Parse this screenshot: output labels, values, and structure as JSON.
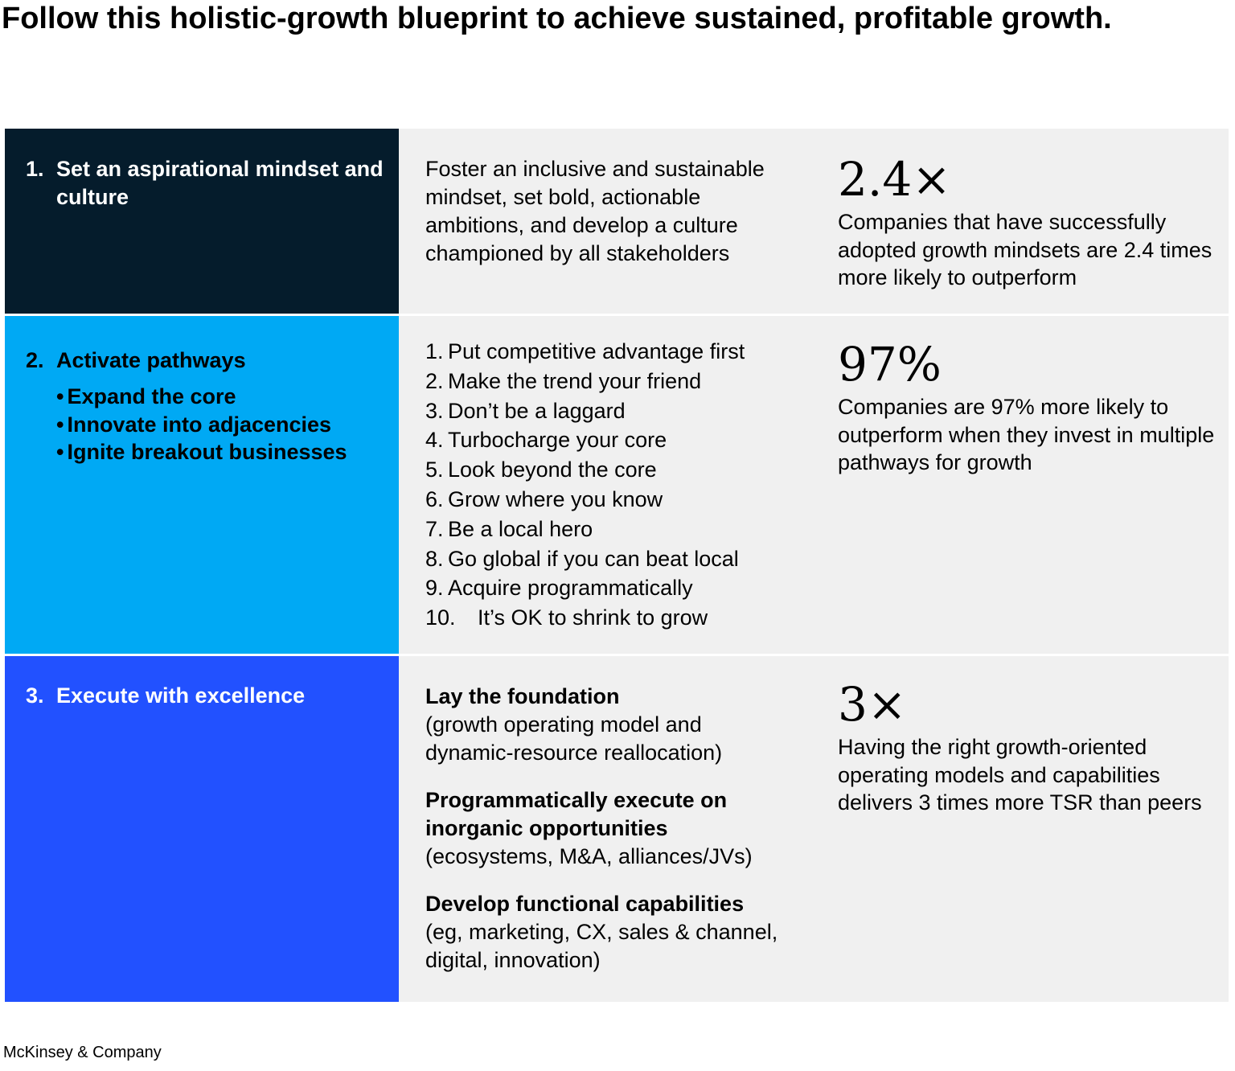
{
  "title": "Follow this holistic-growth blueprint to achieve sustained, profitable growth.",
  "colors": {
    "step1_bg": "#051c2c",
    "step2_bg": "#00a9f4",
    "step3_bg": "#2251ff",
    "panel_bg": "#f0f0f0"
  },
  "rows": [
    {
      "number": "1.",
      "heading": "Set an aspirational mindset and culture",
      "description": "Foster an inclusive and sustainable mindset, set bold, actionable ambitions, and develop a culture championed by all stakeholders",
      "stat_value": "2.4×",
      "stat_text": "Companies that have successfully adopted growth mindsets are 2.4 times more likely to outperform"
    },
    {
      "number": "2.",
      "heading": "Activate pathways",
      "bullets": [
        "Expand the core",
        "Innovate into adjacencies",
        "Ignite breakout businesses"
      ],
      "pathways": [
        {
          "n": "1.",
          "text": "Put competitive advantage first"
        },
        {
          "n": "2.",
          "text": "Make the trend your friend"
        },
        {
          "n": "3.",
          "text": "Don’t be a laggard"
        },
        {
          "n": "4.",
          "text": "Turbocharge your core"
        },
        {
          "n": "5.",
          "text": "Look beyond the core"
        },
        {
          "n": "6.",
          "text": "Grow where you know"
        },
        {
          "n": "7.",
          "text": "Be a local hero"
        },
        {
          "n": "8.",
          "text": "Go global if you can beat local"
        },
        {
          "n": "9.",
          "text": "Acquire programmatically"
        },
        {
          "n": "10.",
          "text": "It’s OK to shrink to grow"
        }
      ],
      "stat_value": "97%",
      "stat_text": "Companies are 97% more likely to outperform when they invest in multiple pathways for growth"
    },
    {
      "number": "3.",
      "heading": "Execute with excellence",
      "blocks": [
        {
          "head": "Lay the foundation",
          "body": "(growth operating model and dynamic-resource reallocation)"
        },
        {
          "head": "Programmatically execute on inorganic opportunities",
          "body": "(ecosystems, M&A, alliances/JVs)"
        },
        {
          "head": "Develop functional capabilities",
          "body": "(eg, marketing, CX, sales & channel, digital, innovation)"
        }
      ],
      "stat_value": "3×",
      "stat_text": "Having the right growth-oriented operating models and capabilities delivers 3 times more TSR than peers"
    }
  ],
  "footer": "McKinsey & Company"
}
